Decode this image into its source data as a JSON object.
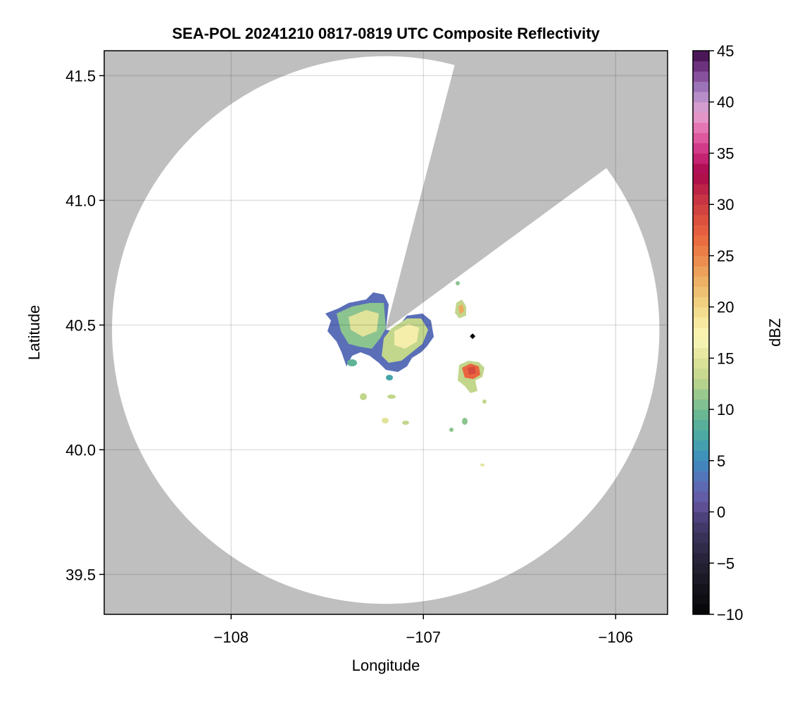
{
  "chart_data": {
    "type": "heatmap",
    "title": "SEA-POL 20241210 0817-0819 UTC Composite Reflectivity",
    "xlabel": "Longitude",
    "ylabel": "Latitude",
    "xlim": [
      -108.66,
      -105.73
    ],
    "ylim": [
      39.34,
      41.6
    ],
    "xticks": [
      -108,
      -107,
      -106
    ],
    "xtick_labels": [
      "−108",
      "−107",
      "−106"
    ],
    "yticks": [
      39.5,
      40.0,
      40.5,
      41.0,
      41.5
    ],
    "ytick_labels": [
      "39.5",
      "40.0",
      "40.5",
      "41.0",
      "41.5"
    ],
    "grid": true,
    "background_color": "#bfbfbf",
    "coverage_color": "#ffffff",
    "radar_site": {
      "lon": -107.196,
      "lat": 40.48
    },
    "radar_range_deg_lat": 1.098,
    "blocked_sector_edges": [
      {
        "lon": -106.845,
        "lat": 41.52
      },
      {
        "lon": -106.065,
        "lat": 41.12
      }
    ],
    "marker": {
      "lon": -106.744,
      "lat": 40.455,
      "shape": "diamond",
      "color": "#000000"
    },
    "colorbar": {
      "label": "dBZ",
      "range": [
        -10,
        45
      ],
      "step": 1,
      "ticks": [
        -10,
        -5,
        0,
        5,
        10,
        15,
        20,
        25,
        30,
        35,
        40,
        45
      ],
      "tick_labels": [
        "−10",
        "−5",
        "0",
        "5",
        "10",
        "15",
        "20",
        "25",
        "30",
        "35",
        "40",
        "45"
      ],
      "anchors": [
        [
          -10,
          "#050507"
        ],
        [
          -7,
          "#17161f"
        ],
        [
          -4,
          "#2c2740"
        ],
        [
          -1,
          "#463c70"
        ],
        [
          1,
          "#6655a0"
        ],
        [
          3,
          "#5a6fb8"
        ],
        [
          5,
          "#3d8bbf"
        ],
        [
          7,
          "#46a5a8"
        ],
        [
          9,
          "#5eb395"
        ],
        [
          11,
          "#8cc490"
        ],
        [
          13,
          "#c2d68c"
        ],
        [
          15,
          "#e0e39a"
        ],
        [
          17,
          "#fbf8b8"
        ],
        [
          19,
          "#f5e497"
        ],
        [
          21,
          "#eec877"
        ],
        [
          23,
          "#eca95f"
        ],
        [
          25,
          "#ec854a"
        ],
        [
          27,
          "#e9653f"
        ],
        [
          29,
          "#d64a3e"
        ],
        [
          31,
          "#c32d46"
        ],
        [
          33,
          "#a8064a"
        ],
        [
          35,
          "#cc2c7e"
        ],
        [
          37,
          "#e266a8"
        ],
        [
          39,
          "#e4a5d3"
        ],
        [
          41,
          "#a886c4"
        ],
        [
          43,
          "#7d3f90"
        ],
        [
          45,
          "#3a0a45"
        ]
      ]
    }
  }
}
